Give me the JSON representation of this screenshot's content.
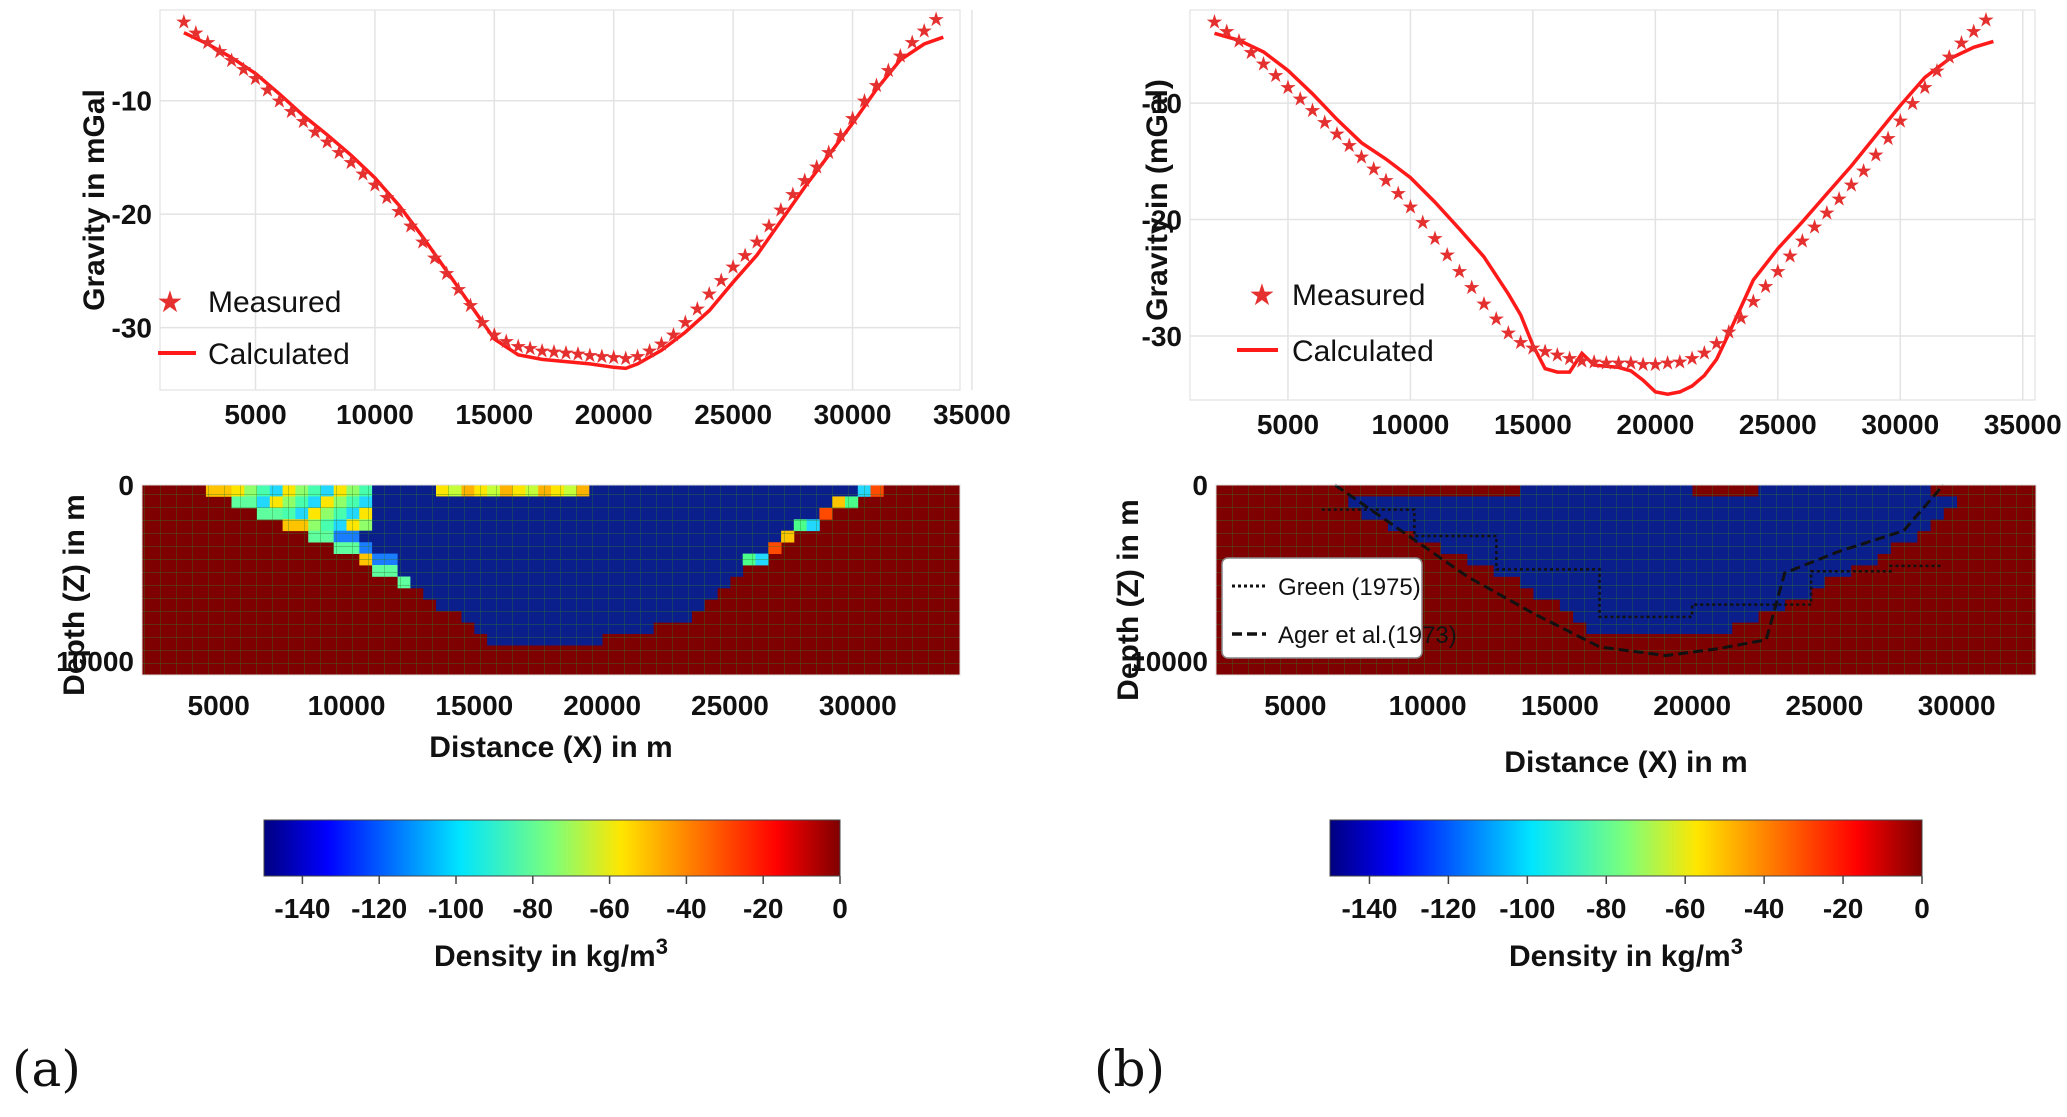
{
  "panels": [
    {
      "label": "(a)",
      "gravity_ylabel": "Gravity in mGal",
      "depth_ylabel": "Depth (Z) in m",
      "depth_xlabel": "Distance (X) in m",
      "colorbar_label": "Density in kg/m",
      "colorbar_sup": "3",
      "legend": {
        "measured": "Measured",
        "calculated": "Calculated"
      }
    },
    {
      "label": "(b)",
      "gravity_ylabel": "Gravity in (mGal)",
      "depth_ylabel": "Depth (Z) in m",
      "depth_xlabel": "Distance (X) in m",
      "colorbar_label": "Density in kg/m",
      "colorbar_sup": "3",
      "legend": {
        "measured": "Measured",
        "calculated": "Calculated"
      },
      "model_legend": {
        "green": "Green (1975)",
        "ager": "Ager et  al.(1973)"
      }
    }
  ],
  "colors": {
    "measured": "#e53030",
    "calculated": "#ff1a1a",
    "background_rock": "#7f0000",
    "basin": "#0a1e8c"
  },
  "chart_data": [
    {
      "type": "line",
      "title": "",
      "xlabel": "",
      "ylabel": "Gravity in mGal",
      "xlim": [
        1000,
        34500
      ],
      "ylim": [
        -35.5,
        -2
      ],
      "xticks": [
        5000,
        10000,
        15000,
        20000,
        25000,
        30000,
        35000
      ],
      "yticks": [
        -10,
        -20,
        -30
      ],
      "series": [
        {
          "name": "Measured",
          "marker": "star",
          "x": [
            2000,
            2500,
            3000,
            3500,
            4000,
            4500,
            5000,
            5500,
            6000,
            6500,
            7000,
            7500,
            8000,
            8500,
            9000,
            9500,
            10000,
            10500,
            11000,
            11500,
            12000,
            12500,
            13000,
            13500,
            14000,
            14500,
            15000,
            15500,
            16000,
            16500,
            17000,
            17500,
            18000,
            18500,
            19000,
            19500,
            20000,
            20500,
            21000,
            21500,
            22000,
            22500,
            23000,
            23500,
            24000,
            24500,
            25000,
            25500,
            26000,
            26500,
            27000,
            27500,
            28000,
            28500,
            29000,
            29500,
            30000,
            30500,
            31000,
            31500,
            32000,
            32500,
            33000,
            33500
          ],
          "y": [
            -3,
            -4,
            -4.8,
            -5.6,
            -6.4,
            -7.2,
            -8,
            -9,
            -10,
            -10.9,
            -11.8,
            -12.7,
            -13.6,
            -14.5,
            -15.4,
            -16.4,
            -17.4,
            -18.5,
            -19.7,
            -21,
            -22.4,
            -23.8,
            -25.2,
            -26.6,
            -28,
            -29.5,
            -30.6,
            -31.2,
            -31.6,
            -31.8,
            -32,
            -32.1,
            -32.2,
            -32.3,
            -32.4,
            -32.5,
            -32.6,
            -32.7,
            -32.5,
            -32,
            -31.4,
            -30.6,
            -29.5,
            -28.3,
            -27,
            -25.8,
            -24.6,
            -23.6,
            -22.4,
            -21,
            -19.6,
            -18.2,
            -17,
            -15.8,
            -14.5,
            -13,
            -11.5,
            -10,
            -8.6,
            -7.3,
            -6,
            -4.8,
            -3.8,
            -2.8
          ]
        },
        {
          "name": "Calculated",
          "x": [
            2000,
            3000,
            4000,
            5000,
            6000,
            7000,
            8000,
            9000,
            10000,
            11000,
            12000,
            13000,
            14000,
            15000,
            16000,
            17000,
            18000,
            19000,
            20000,
            20500,
            21000,
            22000,
            23000,
            24000,
            25000,
            26000,
            27000,
            28000,
            29000,
            30000,
            31000,
            32000,
            33000,
            33800
          ],
          "y": [
            -4,
            -5,
            -6.2,
            -7.6,
            -9.4,
            -11.3,
            -13,
            -14.8,
            -16.8,
            -19.2,
            -22,
            -25,
            -28,
            -31,
            -32.4,
            -32.8,
            -33,
            -33.2,
            -33.5,
            -33.6,
            -33.2,
            -32,
            -30.4,
            -28.5,
            -26,
            -23.6,
            -20.6,
            -17.6,
            -14.8,
            -12,
            -9,
            -6.4,
            -5,
            -4.4
          ]
        }
      ]
    },
    {
      "type": "heatmap",
      "title": "",
      "xlabel": "Distance (X) in m",
      "ylabel": "Depth (Z) in m",
      "xlim": [
        2000,
        34000
      ],
      "ylim": [
        10800,
        0
      ],
      "xticks": [
        5000,
        10000,
        15000,
        20000,
        25000,
        30000
      ],
      "yticks": [
        0,
        10000
      ],
      "basin_top_x": [
        2000,
        3000,
        4000,
        5000,
        6000,
        7000,
        8000,
        9000,
        10000,
        11000,
        12000,
        13000,
        14000,
        15000,
        16000,
        17000,
        18000,
        19000,
        20000,
        21000,
        22000,
        23000,
        24000,
        25000,
        26000,
        27000,
        28000,
        29000,
        30000,
        31000,
        32000,
        33000
      ],
      "basin_bottom_depth": [
        0,
        0,
        0,
        700,
        1300,
        2000,
        2700,
        3300,
        3900,
        4700,
        5500,
        6300,
        7200,
        8200,
        9300,
        9300,
        9300,
        9000,
        8700,
        8700,
        8200,
        7800,
        6700,
        5500,
        4500,
        3500,
        2500,
        1600,
        800,
        200,
        0,
        0
      ],
      "colorbar": {
        "min": -150,
        "max": 0,
        "ticks": [
          -140,
          -120,
          -100,
          -80,
          -60,
          -40,
          -20,
          0
        ],
        "colormap": "jet",
        "label": "Density in kg/m3"
      }
    },
    {
      "type": "line",
      "title": "",
      "xlabel": "",
      "ylabel": "Gravity in (mGal)",
      "xlim": [
        1000,
        35500
      ],
      "ylim": [
        -35.5,
        -2
      ],
      "xticks": [
        5000,
        10000,
        15000,
        20000,
        25000,
        30000,
        35000
      ],
      "yticks": [
        -10,
        -20,
        -30
      ],
      "series": [
        {
          "name": "Measured",
          "marker": "star",
          "x": [
            2000,
            2500,
            3000,
            3500,
            4000,
            4500,
            5000,
            5500,
            6000,
            6500,
            7000,
            7500,
            8000,
            8500,
            9000,
            9500,
            10000,
            10500,
            11000,
            11500,
            12000,
            12500,
            13000,
            13500,
            14000,
            14500,
            15000,
            15500,
            16000,
            16500,
            17000,
            17500,
            18000,
            18500,
            19000,
            19500,
            20000,
            20500,
            21000,
            21500,
            22000,
            22500,
            23000,
            23500,
            24000,
            24500,
            25000,
            25500,
            26000,
            26500,
            27000,
            27500,
            28000,
            28500,
            29000,
            29500,
            30000,
            30500,
            31000,
            31500,
            32000,
            32500,
            33000,
            33500
          ],
          "y": [
            -3,
            -3.8,
            -4.6,
            -5.6,
            -6.6,
            -7.6,
            -8.6,
            -9.6,
            -10.6,
            -11.6,
            -12.6,
            -13.6,
            -14.6,
            -15.6,
            -16.6,
            -17.7,
            -18.9,
            -20.2,
            -21.6,
            -23,
            -24.4,
            -25.8,
            -27.2,
            -28.5,
            -29.7,
            -30.5,
            -31,
            -31.3,
            -31.6,
            -31.9,
            -32.1,
            -32.2,
            -32.3,
            -32.3,
            -32.3,
            -32.4,
            -32.4,
            -32.3,
            -32.2,
            -31.9,
            -31.4,
            -30.6,
            -29.6,
            -28.4,
            -27,
            -25.7,
            -24.4,
            -23.1,
            -21.8,
            -20.6,
            -19.4,
            -18.2,
            -17,
            -15.8,
            -14.4,
            -13,
            -11.5,
            -10,
            -8.6,
            -7.2,
            -6,
            -4.8,
            -3.8,
            -2.8
          ]
        },
        {
          "name": "Calculated",
          "x": [
            2000,
            3000,
            4000,
            5000,
            6000,
            7000,
            8000,
            9000,
            10000,
            11000,
            12000,
            13000,
            14000,
            14500,
            15000,
            15500,
            16000,
            16500,
            17000,
            17300,
            17500,
            18000,
            18500,
            19000,
            19500,
            20000,
            20500,
            21000,
            21500,
            22000,
            22500,
            23000,
            23500,
            24000,
            25000,
            26000,
            27000,
            28000,
            29000,
            30000,
            31000,
            32000,
            33000,
            33800
          ],
          "y": [
            -4,
            -4.6,
            -5.6,
            -7.2,
            -9.2,
            -11.4,
            -13.4,
            -14.8,
            -16.4,
            -18.5,
            -20.8,
            -23.2,
            -26.4,
            -28.2,
            -30.8,
            -32.8,
            -33.1,
            -33.1,
            -31.5,
            -32.1,
            -32.5,
            -32.6,
            -32.7,
            -33,
            -33.8,
            -34.8,
            -35,
            -34.8,
            -34.3,
            -33.4,
            -32,
            -29.8,
            -27.5,
            -25.2,
            -22.5,
            -20.2,
            -17.8,
            -15.4,
            -12.8,
            -10.2,
            -7.8,
            -6.2,
            -5.2,
            -4.7
          ]
        }
      ]
    },
    {
      "type": "heatmap",
      "title": "",
      "xlabel": "Distance (X) in m",
      "ylabel": "Depth (Z) in m",
      "xlim": [
        2000,
        33000
      ],
      "ylim": [
        10800,
        0
      ],
      "xticks": [
        5000,
        10000,
        15000,
        20000,
        25000,
        30000
      ],
      "yticks": [
        0,
        10000
      ],
      "basin_top_x": [
        7000,
        8000,
        9000,
        10000,
        11000,
        12000,
        13000,
        14000,
        15000,
        16000,
        17000,
        18000,
        19000,
        20000,
        21000,
        22000,
        23000,
        24000,
        25000,
        26000,
        27000,
        28000,
        29000,
        30000
      ],
      "basin_bottom_depth": [
        1000,
        2000,
        2700,
        3200,
        3800,
        4500,
        5200,
        6000,
        7000,
        8200,
        8500,
        8500,
        8500,
        8700,
        8200,
        8000,
        7000,
        6500,
        5500,
        4800,
        4200,
        3300,
        2200,
        1000
      ],
      "overlay_green_x": [
        6000,
        9500,
        9500,
        12600,
        12600,
        16500,
        16500,
        20000,
        20000,
        24500,
        24500,
        27500,
        27500,
        29500
      ],
      "overlay_green_z": [
        1400,
        1400,
        2900,
        2900,
        4800,
        4800,
        7500,
        7500,
        6800,
        6800,
        4900,
        4900,
        4600,
        4600
      ],
      "overlay_ager_x": [
        6500,
        9000,
        11500,
        14000,
        16500,
        19000,
        21000,
        22800,
        23500,
        25500,
        28000,
        29500
      ],
      "overlay_ager_z": [
        0,
        2600,
        5200,
        7300,
        9200,
        9700,
        9300,
        8800,
        5000,
        3800,
        2600,
        0
      ],
      "colorbar": {
        "min": -150,
        "max": 0,
        "ticks": [
          -140,
          -120,
          -100,
          -80,
          -60,
          -40,
          -20,
          0
        ],
        "colormap": "jet",
        "label": "Density in kg/m3"
      }
    }
  ]
}
